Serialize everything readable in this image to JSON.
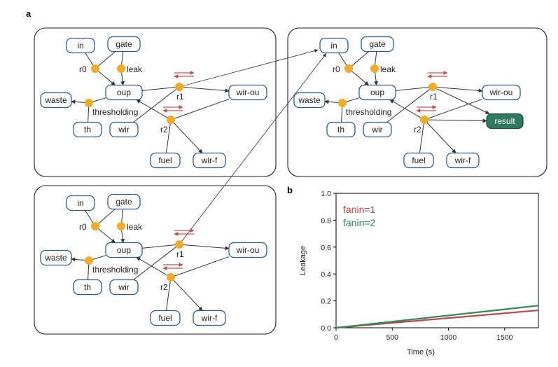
{
  "panel_labels": {
    "a": "a",
    "b": "b"
  },
  "colors": {
    "node_border": "#2e5d8a",
    "reaction_dot": "#f2ab27",
    "arrow_red": "#c0504d",
    "result_fill": "#2f7a5f",
    "fanin1": "#b9474a",
    "fanin2": "#2e8b57"
  },
  "gate_labels": {
    "in": "in",
    "gate": "gate",
    "oup": "oup",
    "waste": "waste",
    "th": "th",
    "wir": "wir",
    "wir_ou": "wir-ou",
    "fuel": "fuel",
    "wir_f": "wir-f",
    "result": "result",
    "r0": "r0",
    "leak": "leak",
    "thresholding": "thresholding",
    "r1": "r1",
    "r2": "r2"
  },
  "chart_data": {
    "type": "line",
    "xlabel": "Time (s)",
    "ylabel": "Leakage",
    "xlim": [
      0,
      1800
    ],
    "ylim": [
      0,
      1.0
    ],
    "xticks": [
      "0",
      "500",
      "1000",
      "1500"
    ],
    "yticks": [
      "0.0",
      "0.2",
      "0.4",
      "0.6",
      "0.8",
      "1.0"
    ],
    "legend_position": "top-left",
    "series": [
      {
        "name": "fanin=1",
        "color": "#b9474a",
        "x": [
          0,
          1800
        ],
        "y": [
          0,
          0.13
        ]
      },
      {
        "name": "fanin=2",
        "color": "#2e8b57",
        "x": [
          0,
          1800
        ],
        "y": [
          0,
          0.165
        ]
      }
    ]
  }
}
